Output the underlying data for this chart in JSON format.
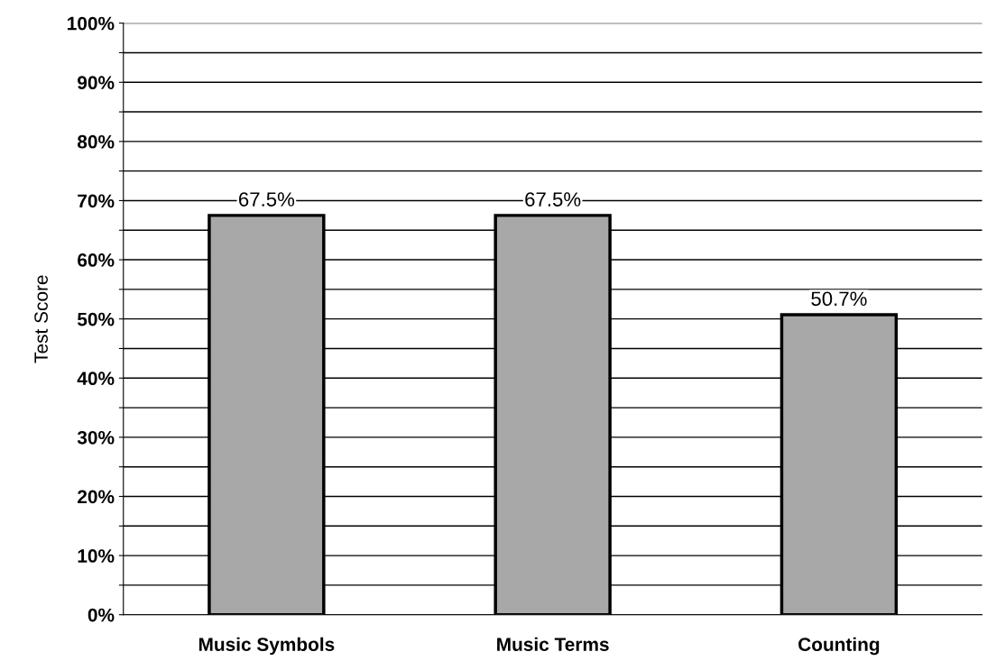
{
  "chart_data": {
    "type": "bar",
    "ylabel": "Test Score",
    "categories": [
      "Music Symbols",
      "Music Terms",
      "Counting"
    ],
    "values": [
      67.5,
      67.5,
      50.7
    ],
    "color": "#a8a8a8",
    "value_labels": [
      "67.5%",
      "67.5%",
      "50.7%"
    ],
    "ylim": [
      0,
      100
    ],
    "yticks": [
      {
        "value": 0,
        "label": "0%"
      },
      {
        "value": 5,
        "label": null
      },
      {
        "value": 10,
        "label": "10%"
      },
      {
        "value": 15,
        "label": null
      },
      {
        "value": 20,
        "label": "20%"
      },
      {
        "value": 25,
        "label": null
      },
      {
        "value": 30,
        "label": "30%"
      },
      {
        "value": 35,
        "label": null
      },
      {
        "value": 40,
        "label": "40%"
      },
      {
        "value": 45,
        "label": null
      },
      {
        "value": 50,
        "label": "50%"
      },
      {
        "value": 55,
        "label": null
      },
      {
        "value": 60,
        "label": "60%"
      },
      {
        "value": 65,
        "label": null
      },
      {
        "value": 70,
        "label": "70%"
      },
      {
        "value": 75,
        "label": null
      },
      {
        "value": 80,
        "label": "80%"
      },
      {
        "value": 85,
        "label": null
      },
      {
        "value": 90,
        "label": "90%"
      },
      {
        "value": 95,
        "label": null
      },
      {
        "value": 100,
        "label": "100%"
      }
    ],
    "grid": "y",
    "legend": false
  }
}
